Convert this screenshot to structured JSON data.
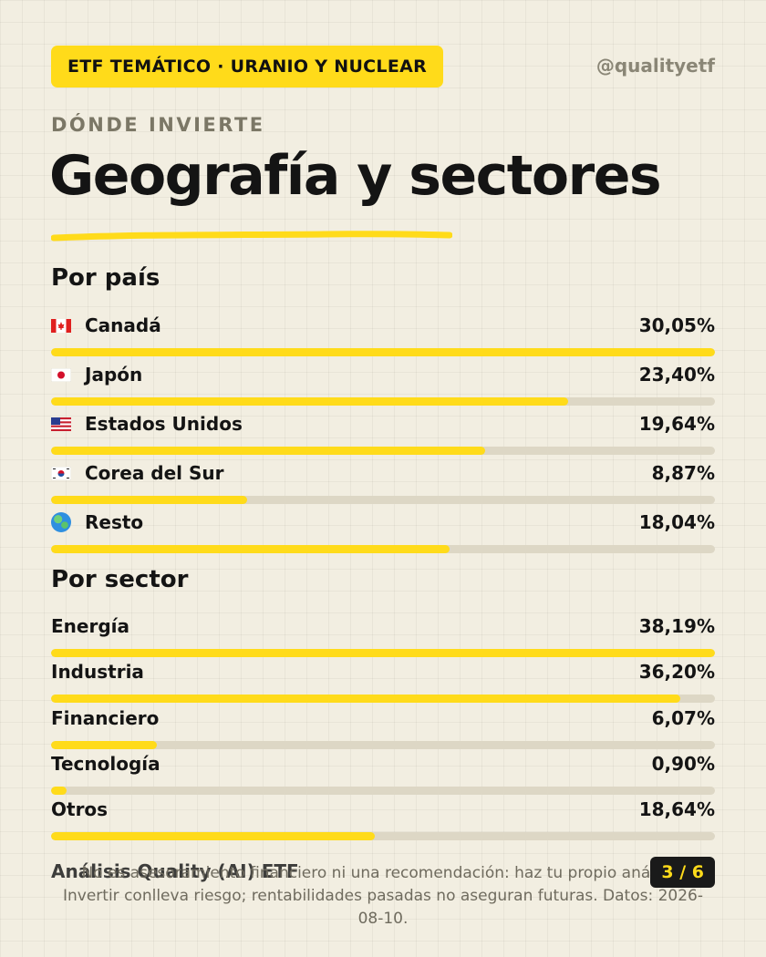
{
  "header": {
    "badge": "ETF TEMÁTICO · URANIO Y NUCLEAR",
    "handle": "@qualityetf"
  },
  "kicker": "DÓNDE INVIERTE",
  "title": "Geografía y sectores",
  "colors": {
    "accent": "#ffdb1a",
    "background": "#f2eee1",
    "track": "#ddd7c5"
  },
  "countries": {
    "title": "Por país",
    "items": [
      {
        "label": "Canadá",
        "value": "30,05%",
        "share": 30.05,
        "icon": "canada-flag-icon"
      },
      {
        "label": "Japón",
        "value": "23,40%",
        "share": 23.4,
        "icon": "japan-flag-icon"
      },
      {
        "label": "Estados Unidos",
        "value": "19,64%",
        "share": 19.64,
        "icon": "usa-flag-icon"
      },
      {
        "label": "Corea del Sur",
        "value": "8,87%",
        "share": 8.87,
        "icon": "south-korea-flag-icon"
      },
      {
        "label": "Resto",
        "value": "18,04%",
        "share": 18.04,
        "icon": "globe-icon"
      }
    ]
  },
  "sectors": {
    "title": "Por sector",
    "items": [
      {
        "label": "Energía",
        "value": "38,19%",
        "share": 38.19
      },
      {
        "label": "Industria",
        "value": "36,20%",
        "share": 36.2
      },
      {
        "label": "Financiero",
        "value": "6,07%",
        "share": 6.07
      },
      {
        "label": "Tecnología",
        "value": "0,90%",
        "share": 0.9
      },
      {
        "label": "Otros",
        "value": "18,64%",
        "share": 18.64
      }
    ]
  },
  "footer": {
    "brand": "Análisis Quality (AI) ETF",
    "disclaimer": "No es asesoramiento financiero ni una recomendación: haz tu propio análisis. Invertir conlleva riesgo; rentabilidades pasadas no aseguran futuras. Datos: 2026-08-10.",
    "page": "3 / 6"
  }
}
